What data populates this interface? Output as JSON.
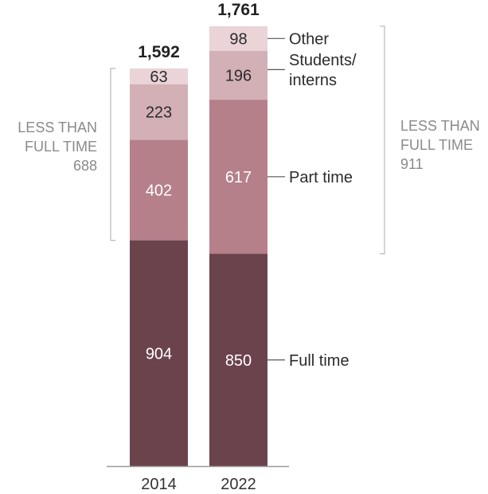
{
  "chart_data": {
    "type": "bar",
    "stacked": true,
    "title": "",
    "xlabel": "",
    "ylabel": "",
    "categories": [
      "2014",
      "2022"
    ],
    "series": [
      {
        "name": "Full time",
        "values": [
          904,
          850
        ],
        "color": "#6b434d",
        "label_color": "#ffffff"
      },
      {
        "name": "Part time",
        "values": [
          402,
          617
        ],
        "color": "#b5808a",
        "label_color": "#ffffff"
      },
      {
        "name": "Students/ interns",
        "name_lines": [
          "Students/",
          "interns"
        ],
        "values": [
          223,
          196
        ],
        "color": "#d2b0b6",
        "label_color": "#2b2b2b"
      },
      {
        "name": "Other",
        "values": [
          63,
          98
        ],
        "color": "#ead4d8",
        "label_color": "#2b2b2b"
      }
    ],
    "totals": [
      "1,592",
      "1,761"
    ],
    "value_labels": [
      [
        "904",
        "402",
        "223",
        "63"
      ],
      [
        "850",
        "617",
        "196",
        "98"
      ]
    ],
    "brackets": [
      {
        "category": "2014",
        "side": "left",
        "lines": [
          "LESS THAN",
          "FULL TIME",
          "688"
        ],
        "value": 688
      },
      {
        "category": "2022",
        "side": "right",
        "lines": [
          "LESS THAN",
          "FULL TIME",
          "911"
        ],
        "value": 911
      }
    ],
    "ylim": [
      0,
      1800
    ],
    "grid": false,
    "legend": "direct-labels-right"
  }
}
